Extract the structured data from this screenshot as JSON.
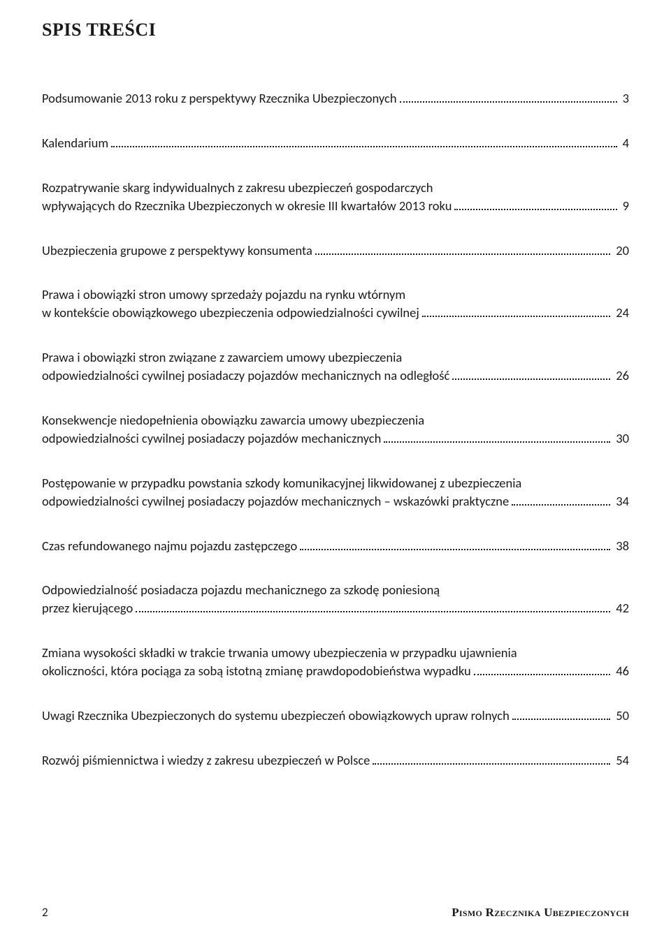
{
  "title": "SPIS TREŚCI",
  "entries": [
    {
      "lines": [
        "Podsumowanie 2013 roku z perspektywy Rzecznika Ubezpieczonych"
      ],
      "page": "3"
    },
    {
      "lines": [
        "Kalendarium"
      ],
      "page": "4"
    },
    {
      "lines": [
        "Rozpatrywanie skarg indywidualnych z zakresu ubezpieczeń gospodarczych",
        "wpływających do Rzecznika Ubezpieczonych w okresie III kwartałów 2013 roku"
      ],
      "page": "9"
    },
    {
      "lines": [
        "Ubezpieczenia grupowe z perspektywy konsumenta"
      ],
      "page": "20"
    },
    {
      "lines": [
        "Prawa i obowiązki stron umowy sprzedaży pojazdu na rynku wtórnym",
        "w kontekście obowiązkowego ubezpieczenia odpowiedzialności cywilnej"
      ],
      "page": "24"
    },
    {
      "lines": [
        "Prawa i obowiązki stron związane z zawarciem umowy ubezpieczenia",
        "odpowiedzialności cywilnej posiadaczy pojazdów mechanicznych na odległość"
      ],
      "page": "26"
    },
    {
      "lines": [
        "Konsekwencje niedopełnienia obowiązku zawarcia umowy ubezpieczenia",
        "odpowiedzialności cywilnej posiadaczy pojazdów mechanicznych"
      ],
      "page": "30"
    },
    {
      "lines": [
        "Postępowanie w przypadku powstania szkody komunikacyjnej likwidowanej z ubezpieczenia",
        "odpowiedzialności cywilnej posiadaczy pojazdów mechanicznych – wskazówki praktyczne"
      ],
      "page": "34"
    },
    {
      "lines": [
        "Czas refundowanego najmu pojazdu zastępczego"
      ],
      "page": "38"
    },
    {
      "lines": [
        "Odpowiedzialność posiadacza pojazdu mechanicznego za szkodę poniesioną",
        "przez kierującego"
      ],
      "page": "42"
    },
    {
      "lines": [
        "Zmiana wysokości składki w trakcie trwania umowy ubezpieczenia w przypadku ujawnienia",
        "okoliczności, która pociąga za sobą istotną zmianę prawdopodobieństwa wypadku"
      ],
      "page": "46"
    },
    {
      "lines": [
        "Uwagi Rzecznika Ubezpieczonych do systemu ubezpieczeń obowiązkowych upraw rolnych"
      ],
      "page": "50"
    },
    {
      "lines": [
        "Rozwój piśmiennictwa i wiedzy z zakresu ubezpieczeń w Polsce"
      ],
      "page": "54"
    }
  ],
  "footer": {
    "page_number": "2",
    "publication_bold": "Pismo Rzecznika Ubezpieczonych"
  }
}
